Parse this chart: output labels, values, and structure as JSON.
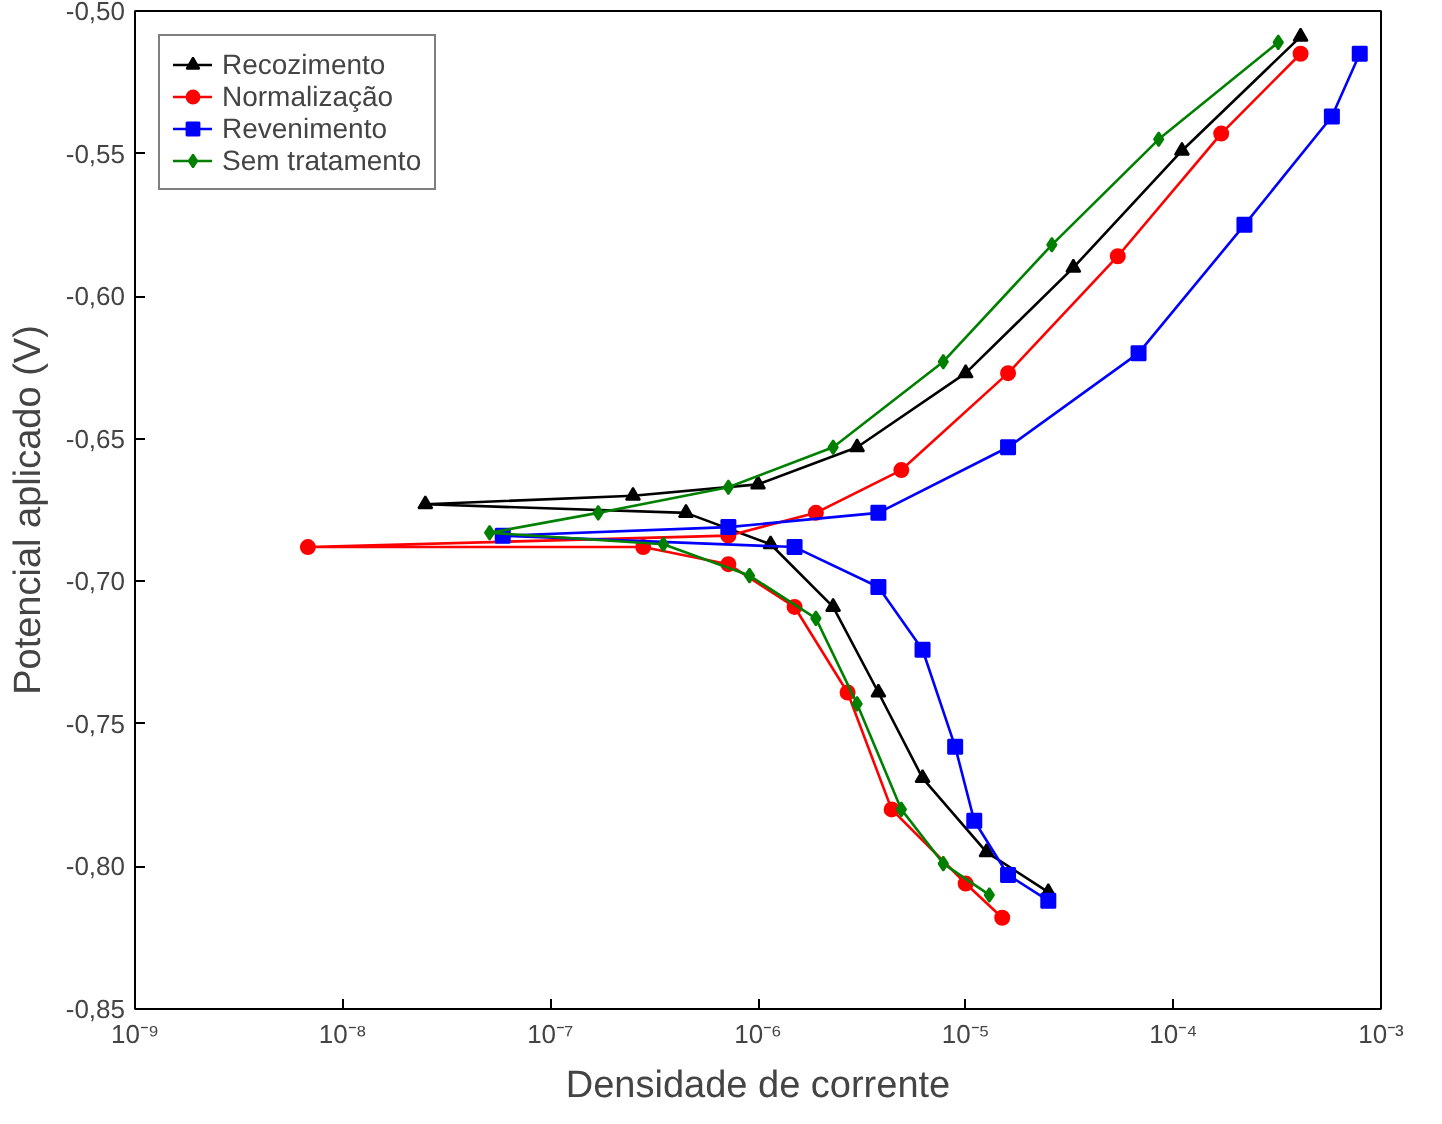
{
  "chart_data": {
    "type": "line",
    "xlabel": "Densidade de corrente",
    "ylabel": "Potencial aplicado (V)",
    "log": "x",
    "legend": "top left",
    "grid": false,
    "xlim": [
      1e-09,
      0.001
    ],
    "xticks": [
      {
        "value": 1e-09,
        "label": "10⁻⁹"
      },
      {
        "value": 1e-08,
        "label": "10⁻⁸"
      },
      {
        "value": 1e-07,
        "label": "10⁻⁷"
      },
      {
        "value": 1e-06,
        "label": "10⁻⁶"
      },
      {
        "value": 1e-05,
        "label": "10⁻⁵"
      },
      {
        "value": 0.0001,
        "label": "10⁻⁴"
      },
      {
        "value": 0.001,
        "label": "10⁻³"
      }
    ],
    "ylim": [
      -0.85,
      -0.5
    ],
    "yticks": [
      {
        "value": -0.85,
        "label": "-0,85"
      },
      {
        "value": -0.8,
        "label": "-0,80"
      },
      {
        "value": -0.75,
        "label": "-0,75"
      },
      {
        "value": -0.7,
        "label": "-0,70"
      },
      {
        "value": -0.65,
        "label": "-0,65"
      },
      {
        "value": -0.6,
        "label": "-0,60"
      },
      {
        "value": -0.55,
        "label": "-0,55"
      },
      {
        "value": -0.5,
        "label": "-0,50"
      }
    ],
    "series": [
      {
        "name": "Recozimento",
        "color": "#000000",
        "marker": "triangle",
        "x": [
          2.5e-05,
          1.26e-05,
          6.2e-06,
          3.8e-06,
          2.3e-06,
          1.15e-06,
          4.5e-07,
          2.5e-08,
          2.5e-07,
          1e-06,
          3e-06,
          1e-05,
          3.3e-05,
          0.00011,
          0.00041
        ],
        "values": [
          -0.809,
          -0.795,
          -0.769,
          -0.739,
          -0.709,
          -0.687,
          -0.676,
          -0.673,
          -0.67,
          -0.666,
          -0.653,
          -0.627,
          -0.59,
          -0.549,
          -0.509
        ]
      },
      {
        "name": "Normalização",
        "color": "#ff0000",
        "marker": "circle",
        "x": [
          1.5e-05,
          1e-05,
          4.4e-06,
          2.7e-06,
          1.5e-06,
          7.2e-07,
          2.8e-07,
          6.8e-09,
          7.2e-07,
          1.9e-06,
          4.9e-06,
          1.6e-05,
          5.4e-05,
          0.00017,
          0.00041
        ],
        "values": [
          -0.818,
          -0.806,
          -0.78,
          -0.739,
          -0.709,
          -0.694,
          -0.688,
          -0.688,
          -0.684,
          -0.676,
          -0.661,
          -0.627,
          -0.586,
          -0.543,
          -0.515
        ]
      },
      {
        "name": "Revenimento",
        "color": "#0000ff",
        "marker": "square",
        "x": [
          2.5e-05,
          1.6e-05,
          1.1e-05,
          8.9e-06,
          6.2e-06,
          3.8e-06,
          1.5e-06,
          5.9e-08,
          7.2e-07,
          3.8e-06,
          1.6e-05,
          6.8e-05,
          0.00022,
          0.00058,
          0.00079
        ],
        "values": [
          -0.812,
          -0.803,
          -0.784,
          -0.758,
          -0.724,
          -0.702,
          -0.688,
          -0.684,
          -0.681,
          -0.676,
          -0.653,
          -0.62,
          -0.575,
          -0.537,
          -0.515
        ]
      },
      {
        "name": "Sem tratamento",
        "color": "#008000",
        "marker": "diamond",
        "x": [
          1.3e-05,
          7.8e-06,
          4.9e-06,
          3e-06,
          1.9e-06,
          9.1e-07,
          3.5e-07,
          5.1e-08,
          1.7e-07,
          7.2e-07,
          2.3e-06,
          7.8e-06,
          2.6e-05,
          8.5e-05,
          0.00032
        ],
        "values": [
          -0.81,
          -0.799,
          -0.78,
          -0.743,
          -0.713,
          -0.698,
          -0.687,
          -0.683,
          -0.676,
          -0.667,
          -0.653,
          -0.623,
          -0.582,
          -0.545,
          -0.511
        ]
      }
    ]
  }
}
